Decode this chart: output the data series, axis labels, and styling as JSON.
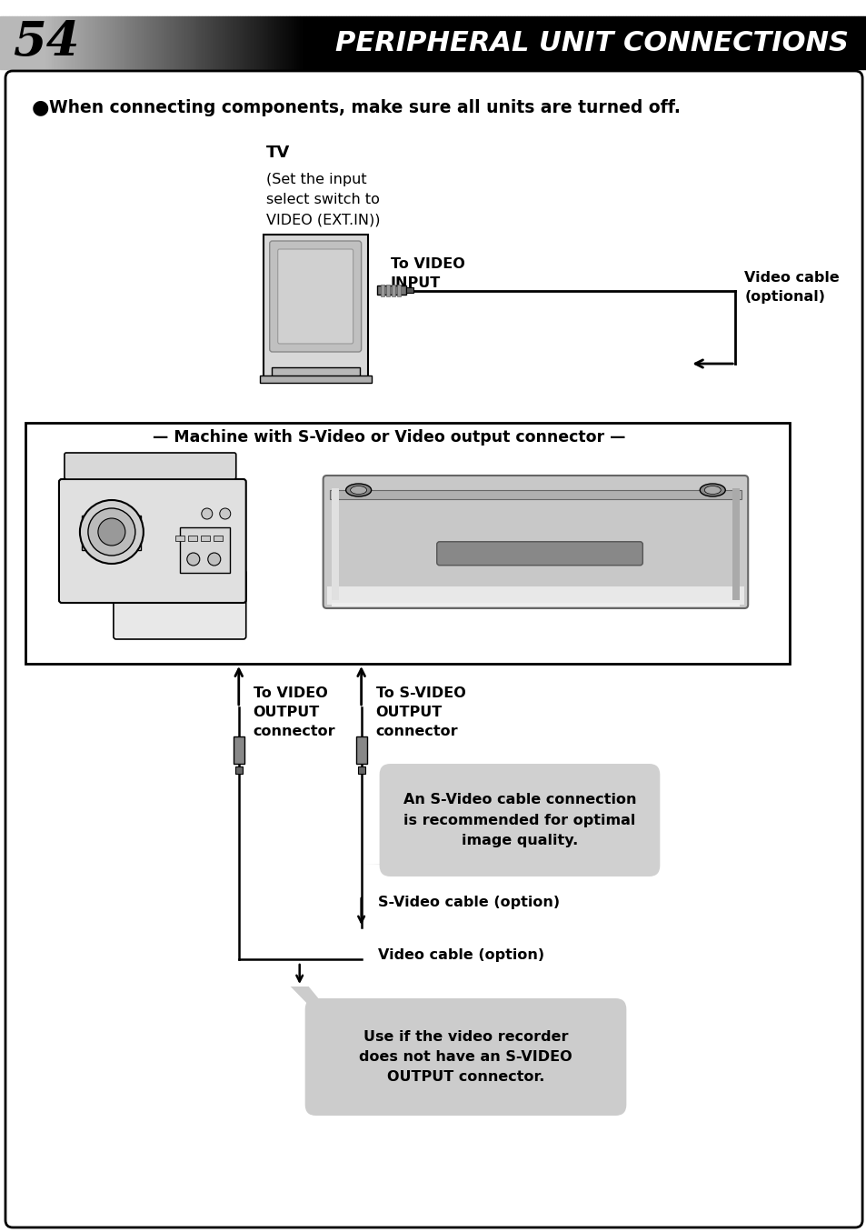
{
  "title": "PERIPHERAL UNIT CONNECTIONS",
  "page_number": "54",
  "background_color": "#ffffff",
  "bullet_text": "When connecting components, make sure all units are turned off.",
  "tv_label": "TV",
  "tv_sublabel": "(Set the input\nselect switch to\nVIDEO (EXT.IN))",
  "to_video_input_label": "To VIDEO\nINPUT",
  "video_cable_label": "Video cable\n(optional)",
  "machine_box_label": "Machine with S-Video or Video output connector",
  "to_video_output_label": "To VIDEO\nOUTPUT\nconnector",
  "to_svideo_output_label": "To S-VIDEO\nOUTPUT\nconnector",
  "svideo_bubble_text": "An S-Video cable connection\nis recommended for optimal\nimage quality.",
  "svideo_cable_label": "S-Video cable (option)",
  "video_cable_option_label": "Video cable (option)",
  "use_if_label": "Use if the video recorder\ndoes not have an S-VIDEO\nOUTPUT connector.",
  "bubble_bg": "#d0d0d0",
  "bubble_bg2": "#cccccc"
}
